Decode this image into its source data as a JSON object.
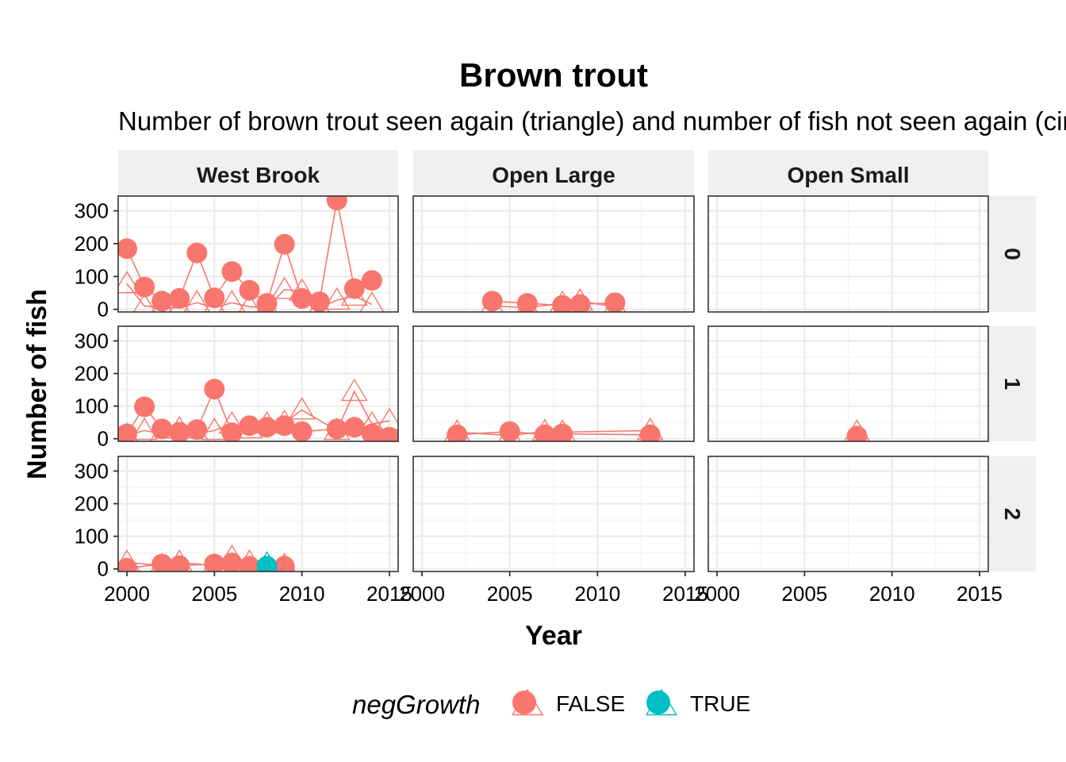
{
  "chart_data": {
    "type": "line",
    "title": "Brown trout",
    "subtitle": "Number of brown trout seen again (triangle) and number of fish not seen again (circle)",
    "xlabel": "Year",
    "ylabel": "Number of fish",
    "xlim": [
      1999.5,
      2015.5
    ],
    "ylim": [
      -8,
      345
    ],
    "x_ticks": [
      "2000",
      "2005",
      "2010",
      "2015"
    ],
    "y_ticks": [
      "0",
      "100",
      "200",
      "300"
    ],
    "grid": true,
    "facet_columns": [
      "West Brook",
      "Open Large",
      "Open Small"
    ],
    "facet_rows": [
      "0",
      "1",
      "2"
    ],
    "legend": {
      "title": "negGrowth",
      "position": "bottom",
      "entries": [
        {
          "label": "FALSE",
          "color": "#F8766D"
        },
        {
          "label": "TRUE",
          "color": "#00BFC4"
        }
      ]
    },
    "panels": [
      {
        "column": "West Brook",
        "row": "0",
        "series": [
          {
            "group": "FALSE",
            "color": "#F8766D",
            "shape": "circle",
            "x": [
              2000,
              2001,
              2002,
              2003,
              2004,
              2005,
              2006,
              2007,
              2008,
              2009,
              2010,
              2011,
              2012,
              2013,
              2014
            ],
            "y": [
              185,
              68,
              25,
              33,
              172,
              35,
              115,
              58,
              18,
              198,
              33,
              23,
              333,
              63,
              88
            ]
          },
          {
            "group": "FALSE",
            "color": "#F8766D",
            "shape": "triangle",
            "x": [
              2000,
              2001,
              2002,
              2003,
              2004,
              2005,
              2006,
              2007,
              2008,
              2009,
              2010,
              2011,
              2012,
              2013,
              2014
            ],
            "y": [
              78,
              10,
              5,
              5,
              20,
              5,
              20,
              8,
              5,
              60,
              55,
              5,
              28,
              40,
              15
            ]
          }
        ]
      },
      {
        "column": "Open Large",
        "row": "0",
        "series": [
          {
            "group": "FALSE",
            "color": "#F8766D",
            "shape": "circle",
            "x": [
              2004,
              2006,
              2008,
              2009,
              2011
            ],
            "y": [
              25,
              18,
              12,
              15,
              20
            ]
          },
          {
            "group": "FALSE",
            "color": "#F8766D",
            "shape": "triangle",
            "x": [
              2004,
              2006,
              2008,
              2009,
              2011
            ],
            "y": [
              10,
              5,
              18,
              25,
              8
            ]
          }
        ]
      },
      {
        "column": "Open Small",
        "row": "0",
        "series": []
      },
      {
        "column": "West Brook",
        "row": "1",
        "series": [
          {
            "group": "FALSE",
            "color": "#F8766D",
            "shape": "circle",
            "x": [
              2000,
              2001,
              2002,
              2003,
              2004,
              2005,
              2006,
              2007,
              2008,
              2009,
              2010,
              2012,
              2013,
              2014,
              2015
            ],
            "y": [
              15,
              98,
              30,
              20,
              28,
              152,
              18,
              40,
              35,
              40,
              22,
              30,
              35,
              15,
              5
            ]
          },
          {
            "group": "FALSE",
            "color": "#F8766D",
            "shape": "triangle",
            "x": [
              2000,
              2001,
              2002,
              2003,
              2004,
              2005,
              2006,
              2007,
              2008,
              2009,
              2010,
              2012,
              2013,
              2014,
              2015
            ],
            "y": [
              10,
              25,
              15,
              30,
              15,
              25,
              45,
              30,
              45,
              50,
              88,
              25,
              145,
              45,
              55
            ]
          }
        ]
      },
      {
        "column": "Open Large",
        "row": "1",
        "series": [
          {
            "group": "FALSE",
            "color": "#F8766D",
            "shape": "circle",
            "x": [
              2002,
              2005,
              2007,
              2008,
              2013
            ],
            "y": [
              12,
              22,
              12,
              15,
              12
            ]
          },
          {
            "group": "FALSE",
            "color": "#F8766D",
            "shape": "triangle",
            "x": [
              2002,
              2005,
              2007,
              2008,
              2013
            ],
            "y": [
              20,
              10,
              22,
              20,
              25
            ]
          }
        ]
      },
      {
        "column": "Open Small",
        "row": "1",
        "series": [
          {
            "group": "FALSE",
            "color": "#F8766D",
            "shape": "circle",
            "x": [
              2008
            ],
            "y": [
              8
            ]
          },
          {
            "group": "FALSE",
            "color": "#F8766D",
            "shape": "triangle",
            "x": [
              2008
            ],
            "y": [
              20
            ]
          }
        ]
      },
      {
        "column": "West Brook",
        "row": "2",
        "series": [
          {
            "group": "FALSE",
            "color": "#F8766D",
            "shape": "circle",
            "x": [
              2000,
              2002,
              2003,
              2005,
              2006,
              2007,
              2009
            ],
            "y": [
              2,
              15,
              10,
              15,
              18,
              8,
              8
            ]
          },
          {
            "group": "FALSE",
            "color": "#F8766D",
            "shape": "triangle",
            "x": [
              2000,
              2002,
              2003,
              2005,
              2006,
              2007,
              2009
            ],
            "y": [
              20,
              10,
              20,
              10,
              35,
              20,
              10
            ]
          },
          {
            "group": "TRUE",
            "color": "#00BFC4",
            "shape": "circle",
            "x": [
              2008
            ],
            "y": [
              8
            ]
          },
          {
            "group": "TRUE",
            "color": "#00BFC4",
            "shape": "triangle",
            "x": [
              2008
            ],
            "y": [
              15
            ]
          }
        ]
      },
      {
        "column": "Open Large",
        "row": "2",
        "series": []
      },
      {
        "column": "Open Small",
        "row": "2",
        "series": []
      }
    ]
  }
}
